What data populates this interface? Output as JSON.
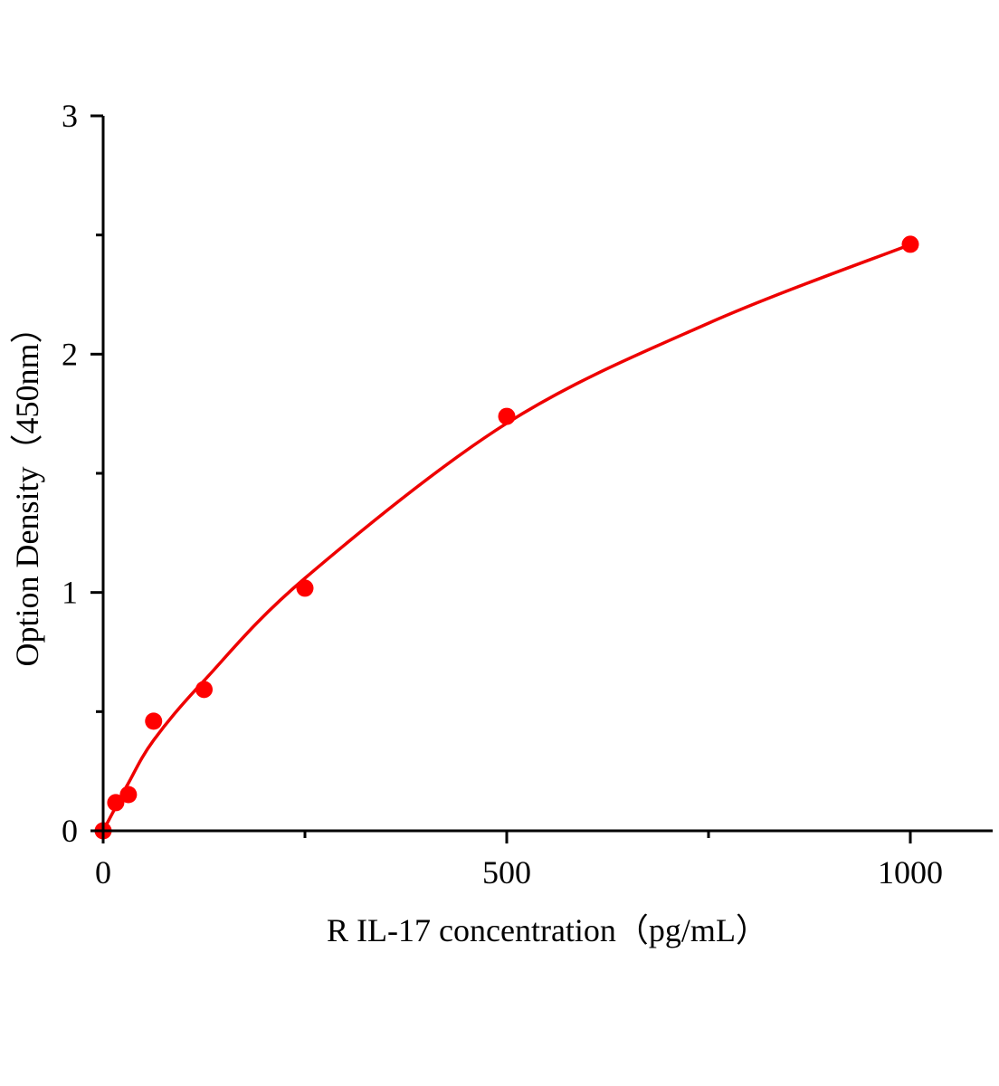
{
  "chart_data": {
    "type": "scatter",
    "title": "",
    "xlabel": "R IL-17   concentration（pg/mL）",
    "ylabel": "Option Density（450nm）",
    "xlim": [
      0,
      1100
    ],
    "ylim": [
      0,
      3
    ],
    "x_ticks": [
      0,
      500,
      1000
    ],
    "x_tick_labels": [
      "0",
      "500",
      "1000"
    ],
    "x_minor_ticks": [
      250,
      750
    ],
    "y_ticks": [
      0,
      1,
      2,
      3
    ],
    "y_tick_labels": [
      "0",
      "1",
      "2",
      "3"
    ],
    "y_minor_ticks": [
      0.5,
      1.5,
      2.5
    ],
    "grid": false,
    "legend": "none",
    "series": [
      {
        "kind": "points",
        "color": "#ff0000",
        "x": [
          0,
          15.6,
          31.25,
          62.5,
          125,
          250,
          500,
          1000
        ],
        "y": [
          0.0,
          0.118,
          0.152,
          0.46,
          0.593,
          1.018,
          1.739,
          2.461
        ]
      },
      {
        "kind": "fitted-curve",
        "color": "#ee0000",
        "x": [
          0,
          15.6,
          31.25,
          62.5,
          125,
          250,
          500,
          750,
          1000
        ],
        "y": [
          0.0,
          0.1,
          0.2,
          0.38,
          0.63,
          1.06,
          1.71,
          2.13,
          2.46
        ]
      }
    ]
  }
}
